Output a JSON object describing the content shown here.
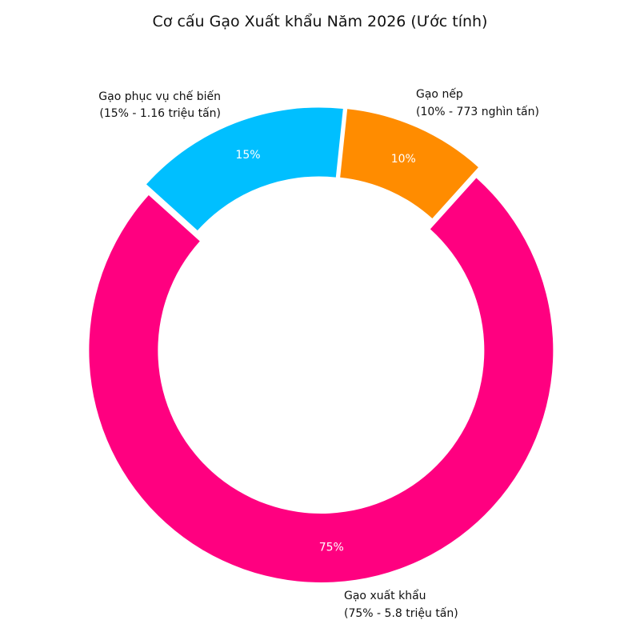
{
  "chart_data": {
    "type": "pie",
    "variant": "donut",
    "title": "Cơ cấu Gạo Xuất khẩu Năm 2026 (Ước tính)",
    "start_angle_deg": -48,
    "slices": [
      {
        "id": "export",
        "name": "Gạo xuất khẩu",
        "value": 75,
        "pct_label": "75%",
        "detail": "(75% - 5.8 triệu tấn)",
        "color": "#FF0080"
      },
      {
        "id": "processing",
        "name": "Gạo phục vụ chế biến",
        "value": 15,
        "pct_label": "15%",
        "detail": "(15% - 1.16 triệu tấn)",
        "color": "#00BFFF"
      },
      {
        "id": "sticky",
        "name": "Gạo nếp",
        "value": 10,
        "pct_label": "10%",
        "detail": "(10% - 773 nghìn tấn)",
        "color": "#FF8C00"
      }
    ]
  }
}
